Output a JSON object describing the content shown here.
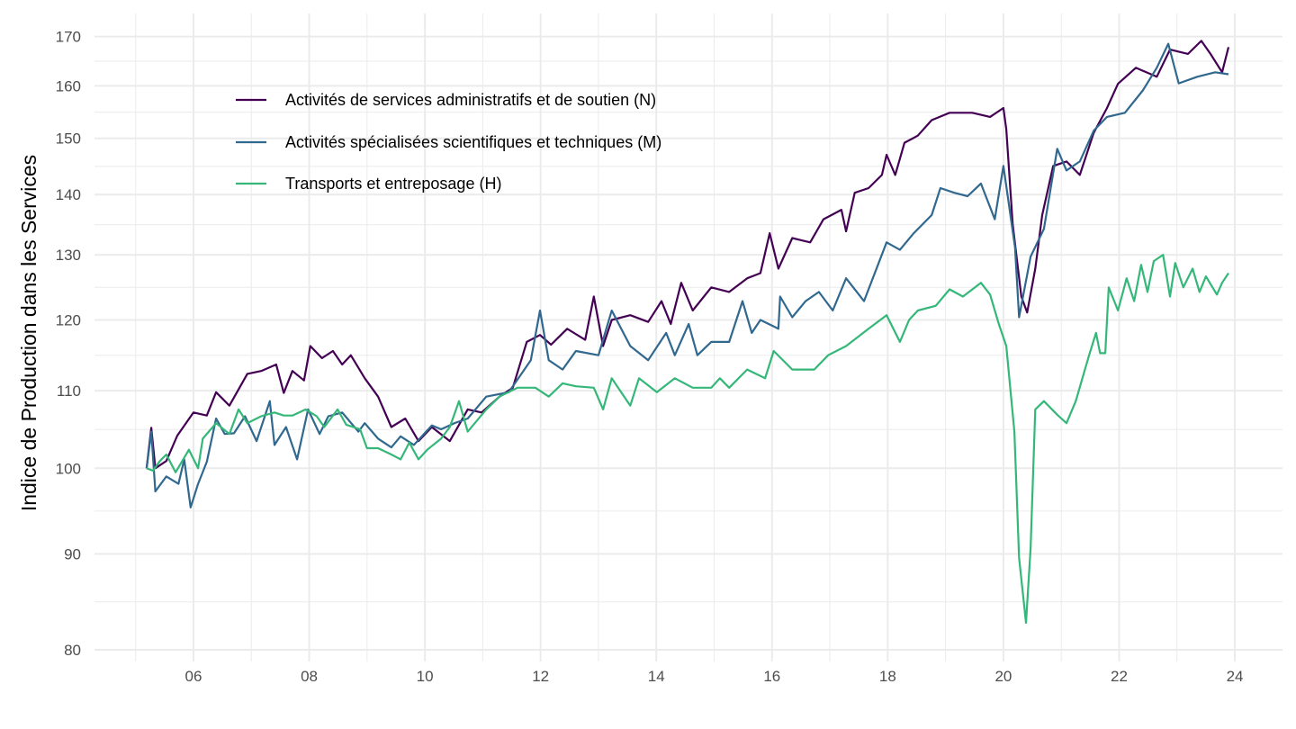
{
  "chart_data": {
    "type": "line",
    "title": "",
    "xlabel": "",
    "ylabel": "Indice de Production dans les Services",
    "y_scale": "log",
    "ylim": [
      80,
      173
    ],
    "xlim": [
      2004.6,
      2024.4
    ],
    "grid": true,
    "legend_position": "top-left",
    "x_ticks": [
      2006,
      2008,
      2010,
      2012,
      2014,
      2016,
      2018,
      2020,
      2022,
      2024
    ],
    "x_tick_labels": [
      "06",
      "08",
      "10",
      "12",
      "14",
      "16",
      "18",
      "20",
      "22",
      "24"
    ],
    "y_ticks": [
      80,
      90,
      100,
      110,
      120,
      130,
      140,
      150,
      160,
      170
    ],
    "y_tick_labels": [
      "80",
      "90",
      "100",
      "110",
      "120",
      "130",
      "140",
      "150",
      "160",
      "170"
    ],
    "series": [
      {
        "name": "Activités de services administratifs et de soutien (N)",
        "color": "#440154",
        "points": [
          [
            2005.19,
            100
          ],
          [
            2005.27,
            105.1
          ],
          [
            2005.34,
            100
          ],
          [
            2005.53,
            100.9
          ],
          [
            2005.72,
            104.1
          ],
          [
            2006.0,
            107.1
          ],
          [
            2006.23,
            106.7
          ],
          [
            2006.39,
            109.8
          ],
          [
            2006.62,
            108.0
          ],
          [
            2006.93,
            112.3
          ],
          [
            2007.17,
            112.7
          ],
          [
            2007.43,
            113.6
          ],
          [
            2007.56,
            109.7
          ],
          [
            2007.71,
            112.7
          ],
          [
            2007.91,
            111.4
          ],
          [
            2008.02,
            116.2
          ],
          [
            2008.22,
            114.5
          ],
          [
            2008.41,
            115.5
          ],
          [
            2008.57,
            113.6
          ],
          [
            2008.72,
            114.9
          ],
          [
            2008.96,
            111.7
          ],
          [
            2009.19,
            109.2
          ],
          [
            2009.42,
            105.2
          ],
          [
            2009.66,
            106.3
          ],
          [
            2009.89,
            103.4
          ],
          [
            2010.12,
            105.2
          ],
          [
            2010.43,
            103.4
          ],
          [
            2010.74,
            107.5
          ],
          [
            2010.98,
            107.1
          ],
          [
            2011.29,
            109.2
          ],
          [
            2011.52,
            110.4
          ],
          [
            2011.76,
            116.8
          ],
          [
            2011.99,
            117.8
          ],
          [
            2012.18,
            116.4
          ],
          [
            2012.46,
            118.7
          ],
          [
            2012.77,
            117.1
          ],
          [
            2012.92,
            123.5
          ],
          [
            2013.08,
            116.2
          ],
          [
            2013.23,
            120
          ],
          [
            2013.55,
            120.7
          ],
          [
            2013.86,
            119.7
          ],
          [
            2014.09,
            122.8
          ],
          [
            2014.25,
            119.4
          ],
          [
            2014.43,
            125.6
          ],
          [
            2014.63,
            121.4
          ],
          [
            2014.95,
            124.9
          ],
          [
            2015.26,
            124.2
          ],
          [
            2015.57,
            126.3
          ],
          [
            2015.8,
            127.1
          ],
          [
            2015.96,
            133.5
          ],
          [
            2016.11,
            127.8
          ],
          [
            2016.35,
            132.7
          ],
          [
            2016.66,
            132.0
          ],
          [
            2016.89,
            135.8
          ],
          [
            2017.2,
            137.4
          ],
          [
            2017.28,
            133.8
          ],
          [
            2017.43,
            140.3
          ],
          [
            2017.67,
            141.1
          ],
          [
            2017.9,
            143.4
          ],
          [
            2017.98,
            147.0
          ],
          [
            2018.13,
            143.4
          ],
          [
            2018.29,
            149.2
          ],
          [
            2018.52,
            150.5
          ],
          [
            2018.76,
            153.4
          ],
          [
            2019.07,
            154.8
          ],
          [
            2019.46,
            154.8
          ],
          [
            2019.77,
            154.0
          ],
          [
            2020.0,
            155.7
          ],
          [
            2020.05,
            151.7
          ],
          [
            2020.16,
            135.0
          ],
          [
            2020.31,
            123.5
          ],
          [
            2020.41,
            121.1
          ],
          [
            2020.55,
            127.8
          ],
          [
            2020.67,
            136.5
          ],
          [
            2020.86,
            145.0
          ],
          [
            2021.09,
            145.8
          ],
          [
            2021.32,
            143.4
          ],
          [
            2021.56,
            151.0
          ],
          [
            2021.79,
            155.7
          ],
          [
            2021.98,
            160.4
          ],
          [
            2022.29,
            163.6
          ],
          [
            2022.65,
            161.8
          ],
          [
            2022.88,
            167.3
          ],
          [
            2023.19,
            166.4
          ],
          [
            2023.42,
            169.1
          ],
          [
            2023.58,
            166.4
          ],
          [
            2023.78,
            162.7
          ],
          [
            2023.89,
            167.8
          ]
        ]
      },
      {
        "name": "Activités spécialisées scientifiques et techniques (M)",
        "color": "#31688e",
        "points": [
          [
            2005.19,
            100
          ],
          [
            2005.27,
            104.6
          ],
          [
            2005.34,
            97.2
          ],
          [
            2005.53,
            99.0
          ],
          [
            2005.74,
            98.1
          ],
          [
            2005.84,
            101.1
          ],
          [
            2005.95,
            95.3
          ],
          [
            2006.08,
            98.1
          ],
          [
            2006.23,
            100.8
          ],
          [
            2006.39,
            106.3
          ],
          [
            2006.54,
            104.3
          ],
          [
            2006.7,
            104.4
          ],
          [
            2006.89,
            106.6
          ],
          [
            2007.09,
            103.4
          ],
          [
            2007.32,
            108.6
          ],
          [
            2007.4,
            102.9
          ],
          [
            2007.6,
            105.2
          ],
          [
            2007.79,
            101.1
          ],
          [
            2007.98,
            107.5
          ],
          [
            2008.18,
            104.3
          ],
          [
            2008.33,
            106.6
          ],
          [
            2008.57,
            107.1
          ],
          [
            2008.85,
            104.6
          ],
          [
            2008.96,
            105.7
          ],
          [
            2009.19,
            103.7
          ],
          [
            2009.42,
            102.6
          ],
          [
            2009.58,
            104.0
          ],
          [
            2009.81,
            102.9
          ],
          [
            2010.12,
            105.4
          ],
          [
            2010.28,
            104.9
          ],
          [
            2010.51,
            105.7
          ],
          [
            2010.74,
            106.3
          ],
          [
            2011.06,
            109.2
          ],
          [
            2011.45,
            109.8
          ],
          [
            2011.83,
            114.2
          ],
          [
            2011.99,
            121.4
          ],
          [
            2012.14,
            114.2
          ],
          [
            2012.38,
            112.9
          ],
          [
            2012.61,
            115.5
          ],
          [
            2013.0,
            114.9
          ],
          [
            2013.23,
            121.4
          ],
          [
            2013.55,
            116.2
          ],
          [
            2013.86,
            114.2
          ],
          [
            2014.17,
            118.1
          ],
          [
            2014.32,
            114.9
          ],
          [
            2014.56,
            119.4
          ],
          [
            2014.71,
            114.9
          ],
          [
            2014.95,
            116.8
          ],
          [
            2015.26,
            116.8
          ],
          [
            2015.49,
            122.8
          ],
          [
            2015.65,
            118.1
          ],
          [
            2015.8,
            120
          ],
          [
            2016.11,
            118.7
          ],
          [
            2016.14,
            123.5
          ],
          [
            2016.35,
            120.4
          ],
          [
            2016.58,
            122.8
          ],
          [
            2016.81,
            124.2
          ],
          [
            2017.05,
            121.4
          ],
          [
            2017.28,
            126.3
          ],
          [
            2017.59,
            122.8
          ],
          [
            2017.98,
            132.0
          ],
          [
            2018.21,
            130.8
          ],
          [
            2018.45,
            133.5
          ],
          [
            2018.76,
            136.5
          ],
          [
            2018.91,
            141.1
          ],
          [
            2019.15,
            140.3
          ],
          [
            2019.38,
            139.7
          ],
          [
            2019.61,
            141.9
          ],
          [
            2019.85,
            135.8
          ],
          [
            2020.0,
            145.0
          ],
          [
            2020.2,
            131.2
          ],
          [
            2020.27,
            120.4
          ],
          [
            2020.47,
            129.7
          ],
          [
            2020.7,
            134.2
          ],
          [
            2020.93,
            148.1
          ],
          [
            2021.09,
            144.2
          ],
          [
            2021.32,
            145.8
          ],
          [
            2021.56,
            151.4
          ],
          [
            2021.79,
            154.0
          ],
          [
            2022.1,
            154.8
          ],
          [
            2022.41,
            159.1
          ],
          [
            2022.65,
            163.6
          ],
          [
            2022.85,
            168.5
          ],
          [
            2023.03,
            160.5
          ],
          [
            2023.35,
            161.8
          ],
          [
            2023.66,
            162.7
          ],
          [
            2023.89,
            162.3
          ]
        ]
      },
      {
        "name": "Transports et entreposage (H)",
        "color": "#35b779",
        "points": [
          [
            2005.19,
            100
          ],
          [
            2005.3,
            99.7
          ],
          [
            2005.42,
            100.9
          ],
          [
            2005.53,
            101.7
          ],
          [
            2005.69,
            99.5
          ],
          [
            2005.92,
            102.3
          ],
          [
            2006.08,
            100
          ],
          [
            2006.16,
            103.7
          ],
          [
            2006.39,
            105.7
          ],
          [
            2006.62,
            104.3
          ],
          [
            2006.78,
            107.5
          ],
          [
            2006.93,
            105.7
          ],
          [
            2007.17,
            106.6
          ],
          [
            2007.4,
            107.1
          ],
          [
            2007.56,
            106.7
          ],
          [
            2007.71,
            106.7
          ],
          [
            2007.94,
            107.5
          ],
          [
            2008.13,
            106.6
          ],
          [
            2008.26,
            105.2
          ],
          [
            2008.49,
            107.5
          ],
          [
            2008.64,
            105.5
          ],
          [
            2008.88,
            104.9
          ],
          [
            2009.0,
            102.5
          ],
          [
            2009.19,
            102.5
          ],
          [
            2009.42,
            101.7
          ],
          [
            2009.58,
            101.1
          ],
          [
            2009.73,
            103.2
          ],
          [
            2009.89,
            101.1
          ],
          [
            2010.04,
            102.3
          ],
          [
            2010.28,
            103.7
          ],
          [
            2010.43,
            105.2
          ],
          [
            2010.59,
            108.6
          ],
          [
            2010.74,
            104.6
          ],
          [
            2011.06,
            107.5
          ],
          [
            2011.29,
            109.2
          ],
          [
            2011.6,
            110.4
          ],
          [
            2011.91,
            110.4
          ],
          [
            2012.14,
            109.2
          ],
          [
            2012.38,
            111.0
          ],
          [
            2012.61,
            110.6
          ],
          [
            2012.92,
            110.4
          ],
          [
            2013.08,
            107.5
          ],
          [
            2013.23,
            111.7
          ],
          [
            2013.55,
            108.0
          ],
          [
            2013.7,
            111.7
          ],
          [
            2014.01,
            109.8
          ],
          [
            2014.32,
            111.7
          ],
          [
            2014.63,
            110.4
          ],
          [
            2014.95,
            110.4
          ],
          [
            2015.1,
            111.7
          ],
          [
            2015.26,
            110.4
          ],
          [
            2015.57,
            112.9
          ],
          [
            2015.88,
            111.7
          ],
          [
            2016.03,
            115.5
          ],
          [
            2016.35,
            112.9
          ],
          [
            2016.73,
            112.9
          ],
          [
            2016.97,
            114.9
          ],
          [
            2017.28,
            116.2
          ],
          [
            2017.67,
            118.7
          ],
          [
            2017.98,
            120.7
          ],
          [
            2018.21,
            116.8
          ],
          [
            2018.37,
            120
          ],
          [
            2018.52,
            121.4
          ],
          [
            2018.83,
            122.1
          ],
          [
            2019.07,
            124.6
          ],
          [
            2019.3,
            123.5
          ],
          [
            2019.61,
            125.6
          ],
          [
            2019.77,
            123.8
          ],
          [
            2019.92,
            119.4
          ],
          [
            2020.05,
            116.2
          ],
          [
            2020.19,
            104.6
          ],
          [
            2020.27,
            89.6
          ],
          [
            2020.39,
            82.7
          ],
          [
            2020.47,
            90.6
          ],
          [
            2020.55,
            107.5
          ],
          [
            2020.7,
            108.6
          ],
          [
            2020.93,
            106.8
          ],
          [
            2021.09,
            105.7
          ],
          [
            2021.25,
            108.6
          ],
          [
            2021.48,
            114.9
          ],
          [
            2021.6,
            118.1
          ],
          [
            2021.67,
            115.2
          ],
          [
            2021.76,
            115.2
          ],
          [
            2021.82,
            124.9
          ],
          [
            2021.98,
            121.4
          ],
          [
            2022.13,
            126.3
          ],
          [
            2022.26,
            122.8
          ],
          [
            2022.38,
            128.4
          ],
          [
            2022.49,
            124.2
          ],
          [
            2022.6,
            129.0
          ],
          [
            2022.76,
            130
          ],
          [
            2022.88,
            123.5
          ],
          [
            2022.97,
            128.7
          ],
          [
            2023.11,
            124.9
          ],
          [
            2023.27,
            127.8
          ],
          [
            2023.39,
            124.2
          ],
          [
            2023.5,
            126.6
          ],
          [
            2023.69,
            123.8
          ],
          [
            2023.78,
            125.6
          ],
          [
            2023.89,
            127.1
          ]
        ]
      }
    ]
  }
}
